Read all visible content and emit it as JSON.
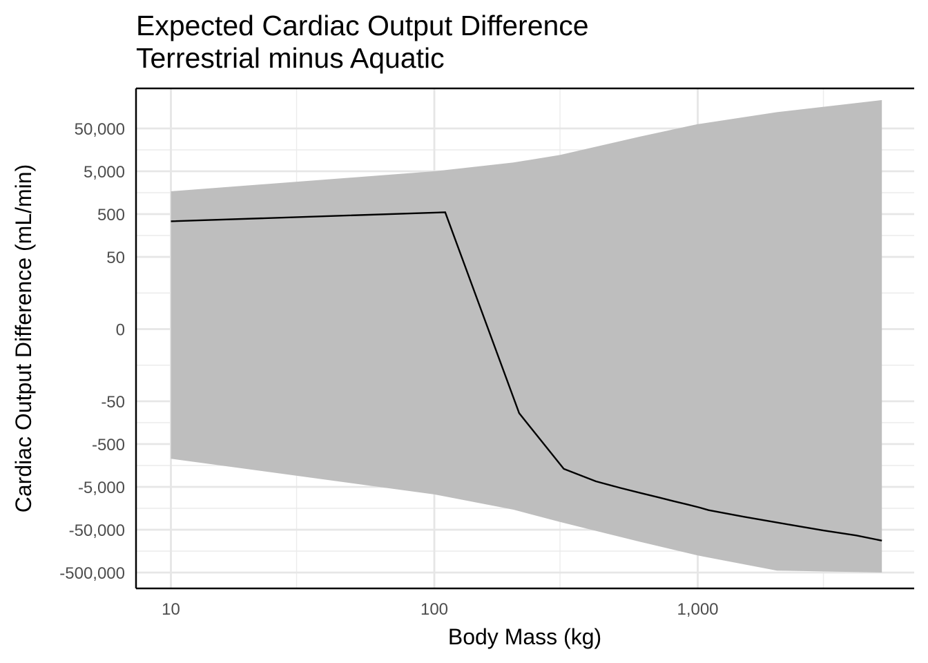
{
  "chart_data": {
    "type": "area",
    "title": "Expected Cardiac Output Difference",
    "subtitle": "Terrestrial minus Aquatic",
    "xlabel": "Body Mass (kg)",
    "ylabel": "Cardiac Output Difference (mL/min)",
    "x_scale": "log10",
    "y_scale": "pseudo-log (signed)",
    "xlim": [
      8,
      6000
    ],
    "ylim": [
      -1000000,
      100000
    ],
    "grid": true,
    "x_ticks": [
      {
        "value": 10,
        "label": "10"
      },
      {
        "value": 100,
        "label": "100"
      },
      {
        "value": 1000,
        "label": "1,000"
      }
    ],
    "y_ticks": [
      {
        "value": 50000,
        "label": "50,000"
      },
      {
        "value": 5000,
        "label": "5,000"
      },
      {
        "value": 500,
        "label": "500"
      },
      {
        "value": 50,
        "label": "50"
      },
      {
        "value": 0,
        "label": "0"
      },
      {
        "value": -50,
        "label": "-50"
      },
      {
        "value": -500,
        "label": "-500"
      },
      {
        "value": -5000,
        "label": "-5,000"
      },
      {
        "value": -50000,
        "label": "-50,000"
      },
      {
        "value": -500000,
        "label": "-500,000"
      }
    ],
    "series": [
      {
        "type": "line",
        "color": "#000000",
        "x": [
          10,
          110,
          210,
          310,
          410,
          510,
          610,
          710,
          810,
          910,
          1010,
          1100,
          1500,
          2000,
          2500,
          3000,
          4000,
          5000
        ],
        "y": [
          340,
          550,
          -95,
          -1900,
          -3700,
          -5300,
          -7000,
          -8800,
          -10800,
          -12800,
          -15000,
          -17500,
          -25000,
          -34000,
          -43000,
          -52000,
          -68000,
          -90000
        ]
      },
      {
        "type": "ribbon",
        "color": "#bebebe",
        "x": [
          10,
          100,
          200,
          300,
          600,
          1000,
          2000,
          5000
        ],
        "lower": [
          -1100,
          -7500,
          -17000,
          -33000,
          -95000,
          -200000,
          -450000,
          -1200000
        ],
        "upper": [
          1700,
          5000,
          8000,
          12000,
          32000,
          63000,
          120000,
          230000
        ]
      }
    ]
  }
}
